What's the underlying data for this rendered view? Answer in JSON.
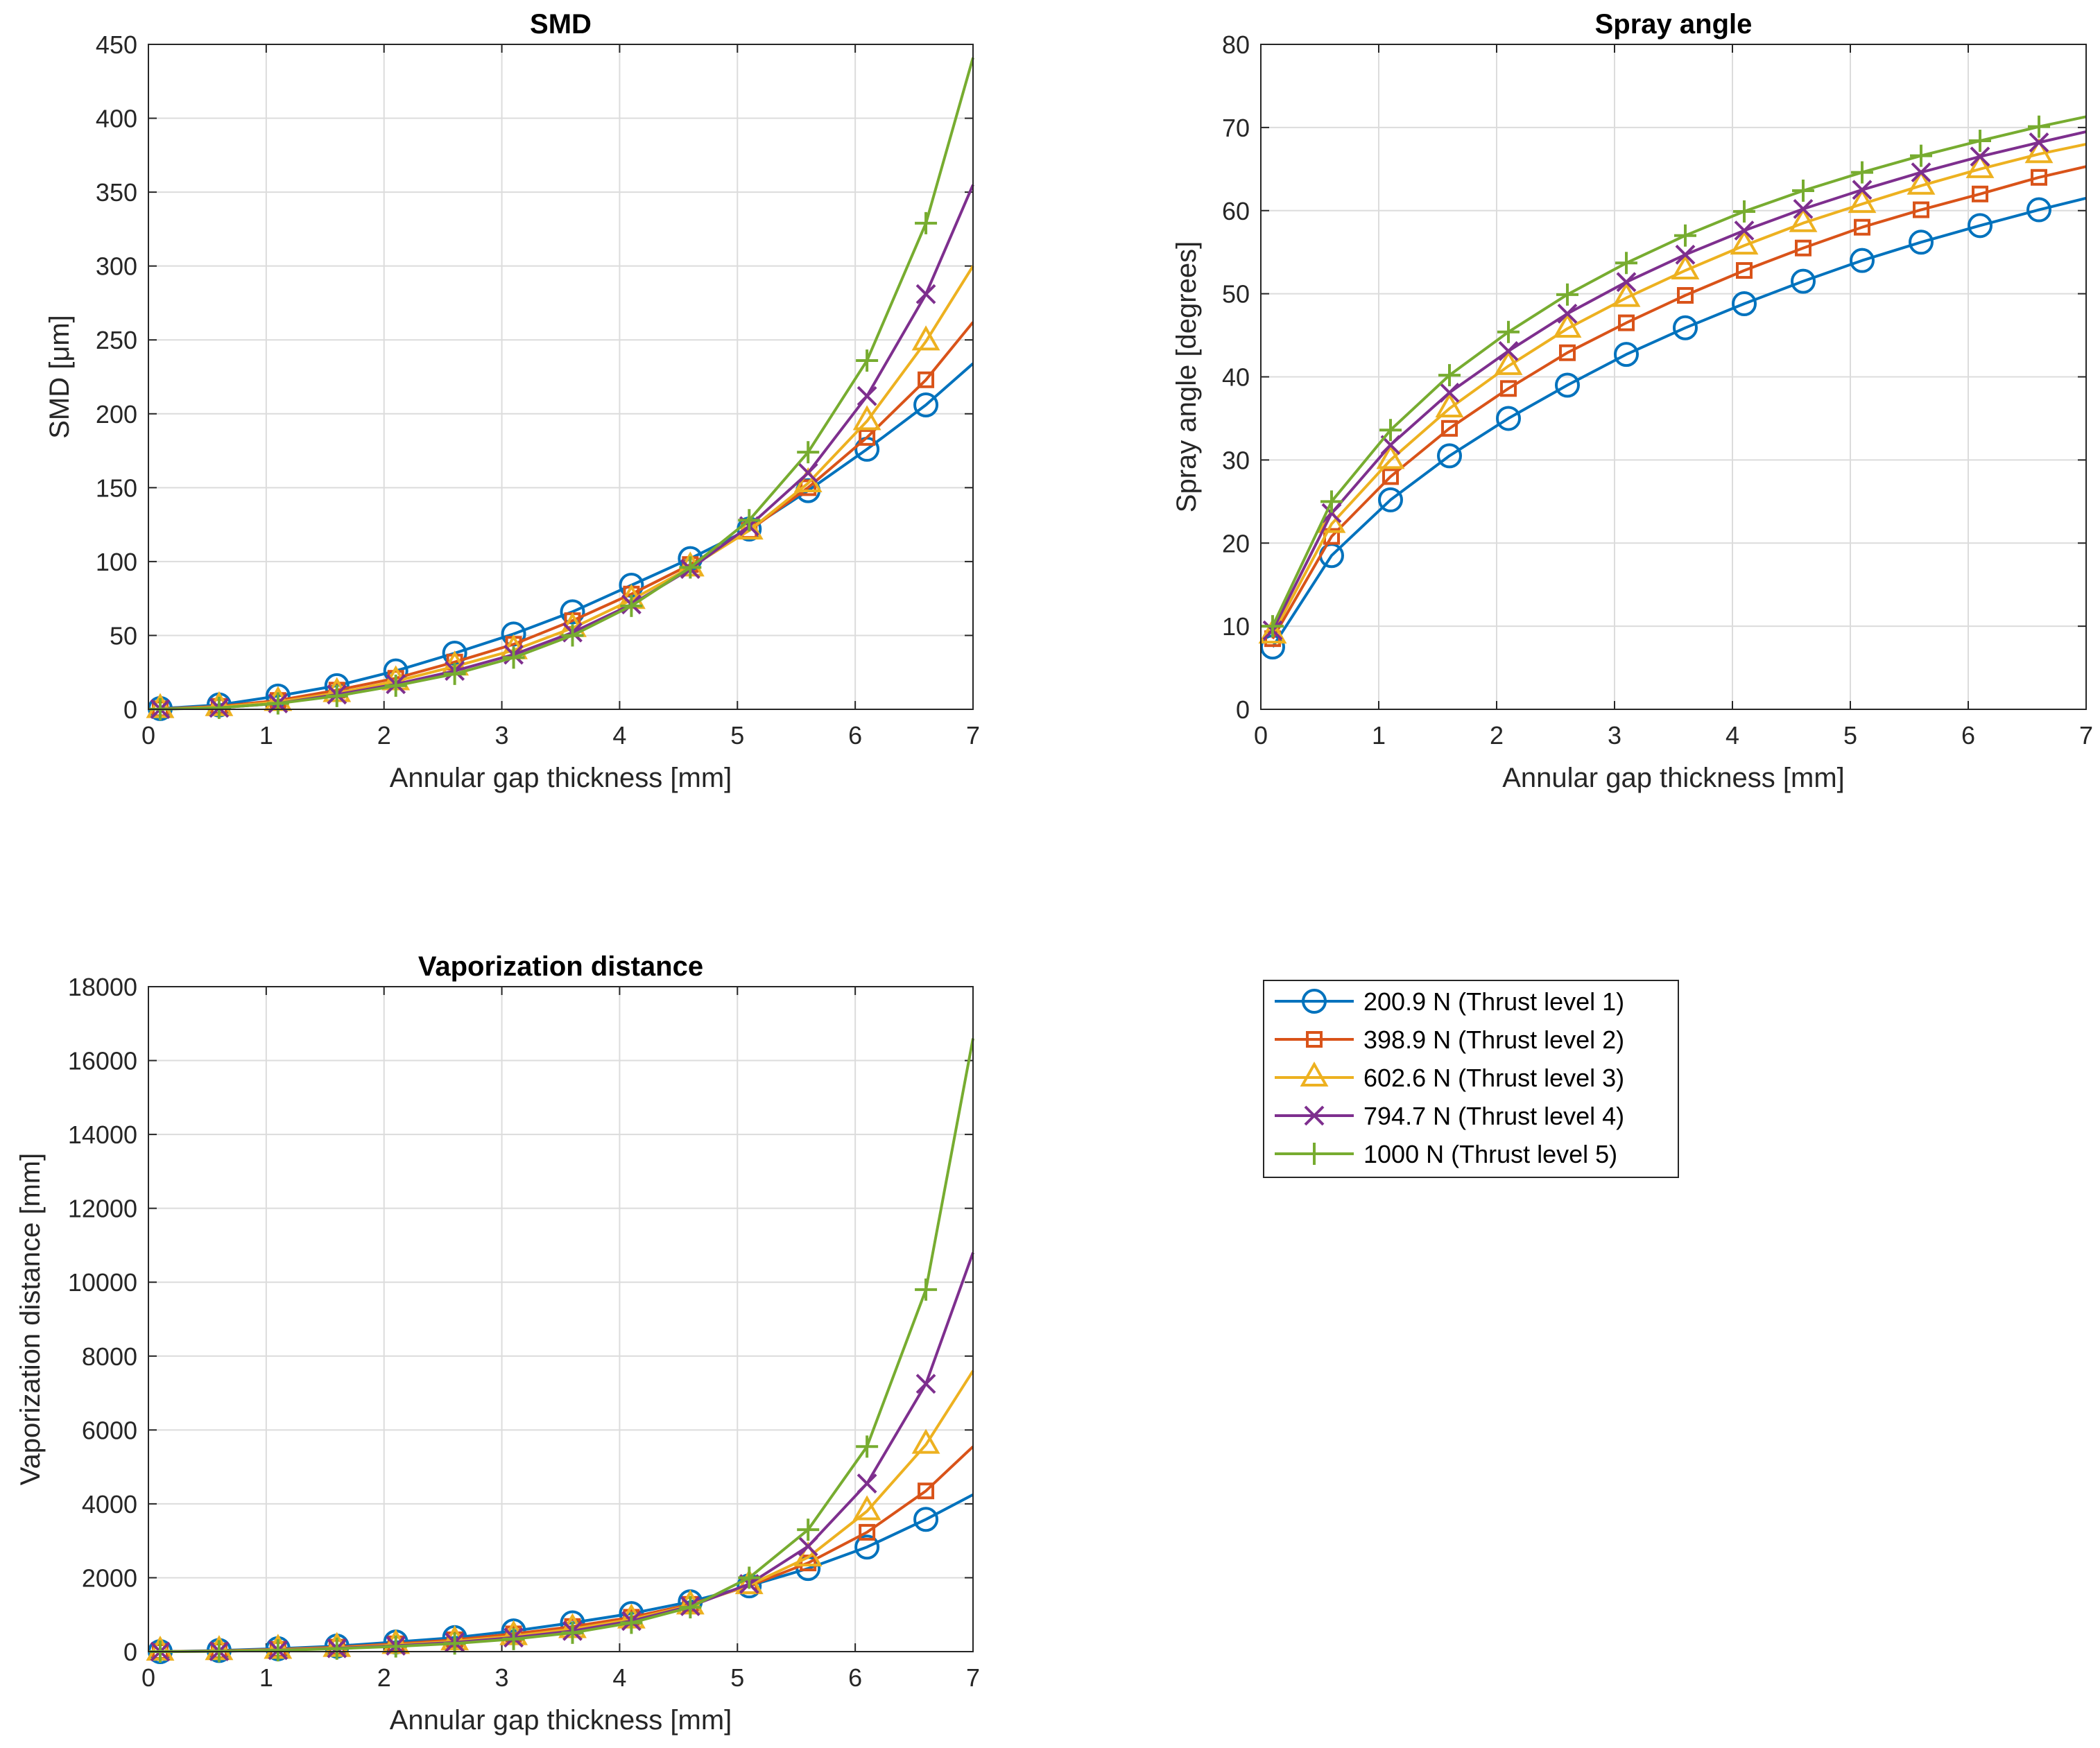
{
  "figure": {
    "legend": [
      {
        "label": "200.9 N (Thrust level 1)",
        "color": "#0072BD",
        "marker": "circle"
      },
      {
        "label": "398.9 N (Thrust level 2)",
        "color": "#D95319",
        "marker": "square"
      },
      {
        "label": "602.6 N (Thrust level 3)",
        "color": "#EDB120",
        "marker": "triangle"
      },
      {
        "label": "794.7 N (Thrust level 4)",
        "color": "#7E2F8E",
        "marker": "x"
      },
      {
        "label": "1000 N (Thrust level 5)",
        "color": "#77AC30",
        "marker": "plus"
      }
    ]
  },
  "chart_data": [
    {
      "id": "smd",
      "type": "line",
      "title": "SMD",
      "xlabel": "Annular gap thickness [mm]",
      "ylabel": "SMD [μm]",
      "xlim": [
        0,
        7
      ],
      "ylim": [
        0,
        450
      ],
      "xticks": [
        0,
        1,
        2,
        3,
        4,
        5,
        6,
        7
      ],
      "yticks": [
        0,
        50,
        100,
        150,
        200,
        250,
        300,
        350,
        400,
        450
      ],
      "grid": true,
      "x": [
        0.1,
        0.6,
        1.1,
        1.6,
        2.1,
        2.6,
        3.1,
        3.6,
        4.1,
        4.6,
        5.1,
        5.6,
        6.1,
        6.6,
        7.0
      ],
      "series": [
        {
          "name": "200.9 N (Thrust level 1)",
          "values": [
            0.5,
            3,
            9,
            16,
            26,
            38,
            51,
            66,
            84,
            102,
            122,
            148,
            176,
            206,
            234
          ]
        },
        {
          "name": "398.9 N (Thrust level 2)",
          "values": [
            0.3,
            2,
            6,
            13,
            21,
            32,
            44,
            60,
            78,
            98,
            121,
            150,
            184,
            223,
            262
          ]
        },
        {
          "name": "602.6 N (Thrust level 3)",
          "values": [
            0.2,
            1.5,
            5,
            11,
            19,
            29,
            40,
            55,
            74,
            96,
            121,
            153,
            195,
            249,
            300
          ]
        },
        {
          "name": "794.7 N (Thrust level 4)",
          "values": [
            0.2,
            1,
            4,
            10,
            17,
            26,
            37,
            52,
            71,
            95,
            124,
            160,
            212,
            281,
            355
          ]
        },
        {
          "name": "1000 N (Thrust level 5)",
          "values": [
            0.1,
            1,
            4,
            9,
            16,
            24,
            35,
            50,
            70,
            96,
            128,
            174,
            236,
            329,
            441
          ]
        }
      ]
    },
    {
      "id": "spray",
      "type": "line",
      "title": "Spray angle",
      "xlabel": "Annular gap thickness [mm]",
      "ylabel": "Spray angle [degrees]",
      "xlim": [
        0,
        7
      ],
      "ylim": [
        0,
        80
      ],
      "xticks": [
        0,
        1,
        2,
        3,
        4,
        5,
        6,
        7
      ],
      "yticks": [
        0,
        10,
        20,
        30,
        40,
        50,
        60,
        70,
        80
      ],
      "grid": true,
      "x": [
        0.1,
        0.6,
        1.1,
        1.6,
        2.1,
        2.6,
        3.1,
        3.6,
        4.1,
        4.6,
        5.1,
        5.6,
        6.1,
        6.6,
        7.0
      ],
      "series": [
        {
          "name": "200.9 N (Thrust level 1)",
          "values": [
            7.5,
            18.5,
            25.2,
            30.5,
            35,
            39,
            42.7,
            45.9,
            48.8,
            51.5,
            54,
            56.2,
            58.2,
            60.1,
            61.5
          ]
        },
        {
          "name": "398.9 N (Thrust level 2)",
          "values": [
            8.5,
            20.8,
            28,
            33.8,
            38.6,
            42.9,
            46.5,
            49.8,
            52.8,
            55.5,
            58,
            60.1,
            62,
            64,
            65.3
          ]
        },
        {
          "name": "602.6 N (Thrust level 3)",
          "values": [
            9,
            22.3,
            30,
            36.2,
            41.3,
            45.8,
            49.5,
            52.8,
            55.8,
            58.5,
            60.8,
            63,
            65,
            66.8,
            68
          ]
        },
        {
          "name": "794.7 N (Thrust level 4)",
          "values": [
            9.5,
            23.6,
            31.8,
            38.1,
            43.1,
            47.6,
            51.4,
            54.7,
            57.6,
            60.2,
            62.5,
            64.6,
            66.5,
            68.2,
            69.5
          ]
        },
        {
          "name": "1000 N (Thrust level 5)",
          "values": [
            10,
            25,
            33.6,
            40.2,
            45.4,
            49.9,
            53.7,
            57,
            59.9,
            62.4,
            64.6,
            66.6,
            68.4,
            70.1,
            71.3
          ]
        }
      ]
    },
    {
      "id": "vap",
      "type": "line",
      "title": "Vaporization distance",
      "xlabel": "Annular gap thickness [mm]",
      "ylabel": "Vaporization distance [mm]",
      "xlim": [
        0,
        7
      ],
      "ylim": [
        0,
        18000
      ],
      "xticks": [
        0,
        1,
        2,
        3,
        4,
        5,
        6,
        7
      ],
      "yticks": [
        0,
        2000,
        4000,
        6000,
        8000,
        10000,
        12000,
        14000,
        16000,
        18000
      ],
      "grid": true,
      "x": [
        0.1,
        0.6,
        1.1,
        1.6,
        2.1,
        2.6,
        3.1,
        3.6,
        4.1,
        4.6,
        5.1,
        5.6,
        6.1,
        6.6,
        7.0
      ],
      "series": [
        {
          "name": "200.9 N (Thrust level 1)",
          "values": [
            0,
            30,
            80,
            150,
            260,
            380,
            560,
            780,
            1030,
            1350,
            1780,
            2250,
            2830,
            3580,
            4250
          ]
        },
        {
          "name": "398.9 N (Thrust level 2)",
          "values": [
            0,
            20,
            60,
            120,
            210,
            320,
            480,
            680,
            930,
            1280,
            1780,
            2400,
            3230,
            4350,
            5550
          ]
        },
        {
          "name": "602.6 N (Thrust level 3)",
          "values": [
            0,
            15,
            50,
            100,
            180,
            280,
            420,
            610,
            870,
            1250,
            1800,
            2550,
            3800,
            5600,
            7600
          ]
        },
        {
          "name": "794.7 N (Thrust level 4)",
          "values": [
            0,
            10,
            40,
            90,
            160,
            250,
            380,
            560,
            830,
            1230,
            1830,
            2850,
            4550,
            7250,
            10800
          ]
        },
        {
          "name": "1000 N (Thrust level 5)",
          "values": [
            0,
            10,
            35,
            80,
            140,
            220,
            340,
            510,
            780,
            1200,
            2000,
            3300,
            5550,
            9800,
            16600
          ]
        }
      ]
    }
  ]
}
